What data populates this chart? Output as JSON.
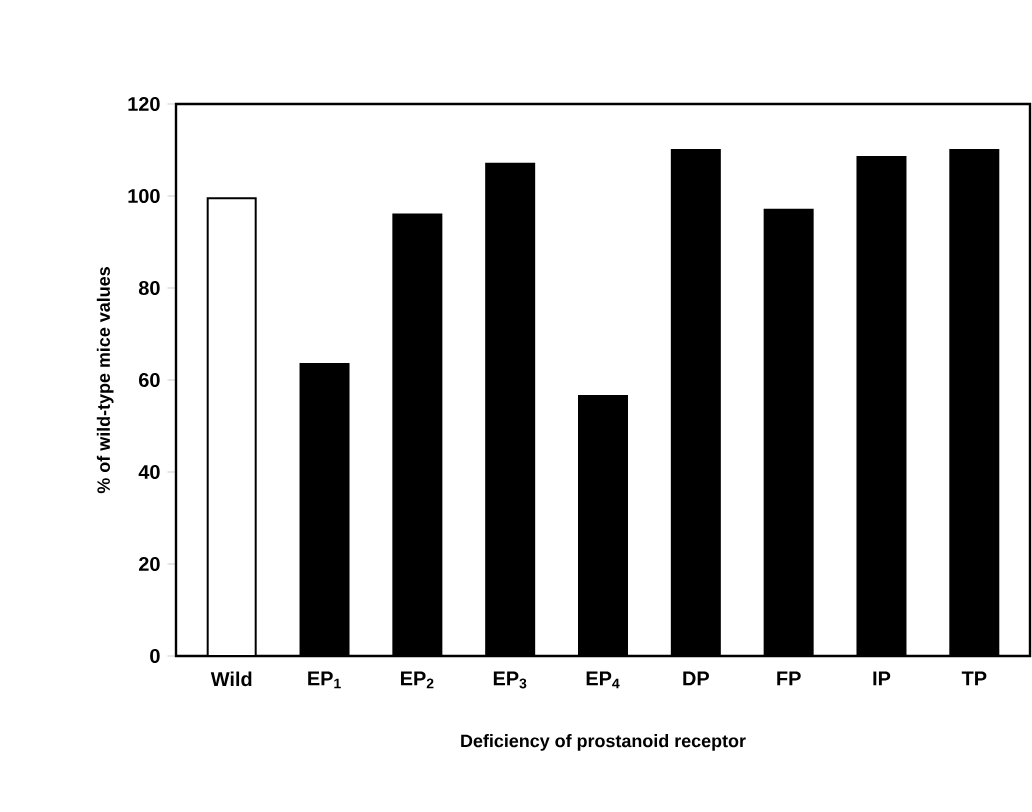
{
  "chart_data": {
    "type": "bar",
    "xlabel": "Deficiency of prostanoid receptor",
    "ylabel": "% of wild-type mice values",
    "categories": [
      "Wild",
      "EP$_{1}$",
      "EP$_{2}$",
      "EP$_{3}$",
      "EP$_{4}$",
      "DP",
      "FP",
      "IP",
      "TP"
    ],
    "values": [
      99.5,
      63.5,
      96,
      107,
      56.5,
      110,
      97,
      108.5,
      110
    ],
    "colors": [
      "#ffffff",
      "#000000",
      "#000000",
      "#000000",
      "#000000",
      "#000000",
      "#000000",
      "#000000",
      "#000000"
    ],
    "ylim": [
      0,
      120
    ],
    "yticks": [
      0,
      20,
      40,
      60,
      80,
      100,
      120
    ],
    "grid": false
  }
}
